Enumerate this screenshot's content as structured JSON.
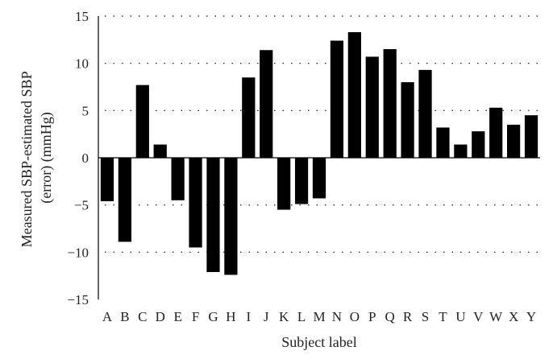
{
  "chart_data": {
    "type": "bar",
    "title": "",
    "xlabel": "Subject label",
    "ylabel": "Measured SBP-estimated SBP (error) (mmHg)",
    "ylabel_lines": [
      "Measured SBP-estimated SBP",
      "(error) (mmHg)"
    ],
    "ylim": [
      -15,
      15
    ],
    "yticks": [
      15,
      10,
      5,
      0,
      -5,
      -10,
      -15
    ],
    "ytick_labels": [
      "15",
      "10",
      "5",
      "0",
      "−5",
      "−10",
      "−15"
    ],
    "grid": true,
    "bar_color": "#000000",
    "categories": [
      "A",
      "B",
      "C",
      "D",
      "E",
      "F",
      "G",
      "H",
      "I",
      "J",
      "K",
      "L",
      "M",
      "N",
      "O",
      "P",
      "Q",
      "R",
      "S",
      "T",
      "U",
      "V",
      "W",
      "X",
      "Y"
    ],
    "values": [
      -4.6,
      -8.9,
      7.7,
      1.4,
      -4.5,
      -9.5,
      -12.1,
      -12.4,
      8.5,
      11.4,
      -5.5,
      -4.9,
      -4.3,
      12.4,
      13.3,
      10.7,
      11.5,
      8.0,
      9.3,
      3.2,
      1.4,
      2.8,
      5.3,
      3.5,
      4.5
    ]
  }
}
